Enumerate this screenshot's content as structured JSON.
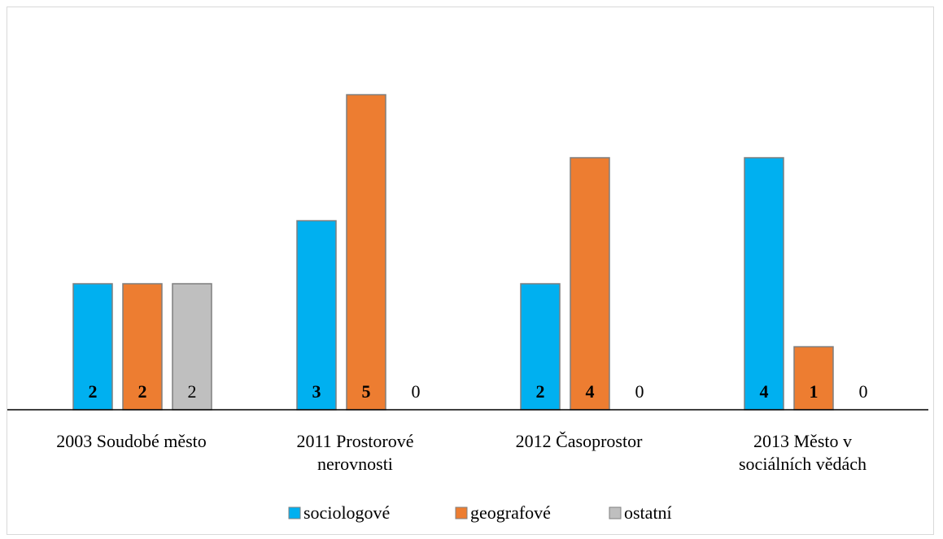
{
  "chart_data": {
    "type": "bar",
    "categories": [
      [
        "2003 Soudobé město"
      ],
      [
        "2011 Prostorové",
        "nerovnosti"
      ],
      [
        "2012 Časoprostor"
      ],
      [
        "2013 Město v",
        "sociálních vědách"
      ]
    ],
    "series": [
      {
        "name": "sociologové",
        "color": "#00b0f0",
        "values": [
          2,
          3,
          2,
          4
        ]
      },
      {
        "name": "geografové",
        "color": "#ed7d31",
        "values": [
          2,
          5,
          4,
          1
        ]
      },
      {
        "name": "ostatní",
        "color": "#bfbfbf",
        "values": [
          2,
          0,
          0,
          0
        ]
      }
    ],
    "ylim": [
      0,
      6
    ],
    "grid": false,
    "legend_position": "bottom",
    "data_labels": [
      [
        "2",
        "2",
        "2"
      ],
      [
        "3",
        "5",
        "0"
      ],
      [
        "2",
        "4",
        "0"
      ],
      [
        "4",
        "1",
        "0"
      ]
    ]
  }
}
